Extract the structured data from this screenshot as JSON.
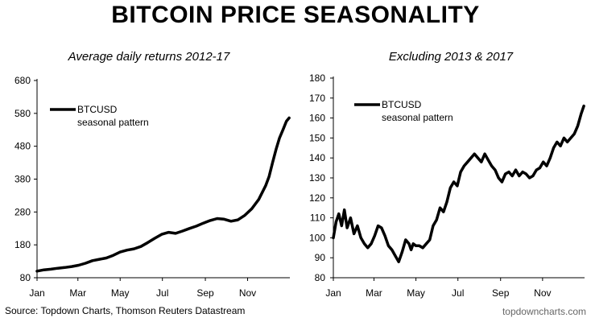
{
  "title": "BITCOIN PRICE SEASONALITY",
  "source": "Source: Topdown Charts, Thomson Reuters Datastream",
  "site": "topdowncharts.com",
  "chart_data": [
    {
      "type": "line",
      "subtitle": "Average daily returns 2012-17",
      "legend": [
        "BTCUSD",
        "seasonal pattern"
      ],
      "legend_position": "top-left",
      "grid": false,
      "ylim": [
        80,
        680
      ],
      "yticks": [
        80,
        180,
        280,
        380,
        480,
        580,
        680
      ],
      "xlim": [
        0,
        365
      ],
      "xticks": [
        {
          "label": "Jan",
          "day": 0
        },
        {
          "label": "Mar",
          "day": 59
        },
        {
          "label": "May",
          "day": 120
        },
        {
          "label": "Jul",
          "day": 181
        },
        {
          "label": "Sep",
          "day": 243
        },
        {
          "label": "Nov",
          "day": 304
        }
      ],
      "series": [
        {
          "name": "BTCUSD",
          "color": "#000000",
          "x": [
            0,
            10,
            20,
            30,
            40,
            50,
            60,
            70,
            80,
            90,
            100,
            110,
            120,
            130,
            140,
            150,
            160,
            170,
            180,
            190,
            200,
            210,
            220,
            230,
            240,
            250,
            260,
            270,
            280,
            290,
            300,
            310,
            320,
            330,
            335,
            340,
            345,
            350,
            355,
            360,
            364
          ],
          "y": [
            100,
            104,
            106,
            109,
            111,
            114,
            118,
            124,
            132,
            136,
            140,
            148,
            158,
            164,
            168,
            175,
            187,
            200,
            212,
            218,
            215,
            222,
            230,
            237,
            246,
            254,
            260,
            258,
            252,
            256,
            270,
            290,
            318,
            360,
            388,
            430,
            470,
            505,
            530,
            556,
            566
          ]
        }
      ]
    },
    {
      "type": "line",
      "subtitle": "Excluding 2013 & 2017",
      "legend": [
        "BTCUSD",
        "seasonal pattern"
      ],
      "legend_position": "top-left",
      "grid": false,
      "ylim": [
        80,
        180
      ],
      "yticks": [
        80,
        90,
        100,
        110,
        120,
        130,
        140,
        150,
        160,
        170,
        180
      ],
      "xlim": [
        0,
        365
      ],
      "xticks": [
        {
          "label": "Jan",
          "day": 0
        },
        {
          "label": "Mar",
          "day": 59
        },
        {
          "label": "May",
          "day": 120
        },
        {
          "label": "Jul",
          "day": 181
        },
        {
          "label": "Sep",
          "day": 243
        },
        {
          "label": "Nov",
          "day": 304
        }
      ],
      "series": [
        {
          "name": "BTCUSD",
          "color": "#000000",
          "x": [
            0,
            4,
            8,
            12,
            16,
            20,
            25,
            30,
            35,
            40,
            45,
            50,
            55,
            60,
            65,
            70,
            75,
            80,
            85,
            90,
            95,
            100,
            105,
            110,
            113,
            116,
            120,
            125,
            130,
            135,
            140,
            145,
            150,
            155,
            160,
            165,
            170,
            175,
            180,
            185,
            190,
            195,
            200,
            205,
            210,
            215,
            220,
            225,
            230,
            235,
            240,
            245,
            250,
            255,
            260,
            265,
            270,
            275,
            280,
            285,
            290,
            295,
            300,
            305,
            310,
            315,
            320,
            325,
            330,
            335,
            340,
            345,
            350,
            355,
            360,
            364
          ],
          "y": [
            100,
            108,
            112,
            106,
            114,
            105,
            110,
            102,
            106,
            100,
            97,
            95,
            97,
            101,
            106,
            105,
            101,
            96,
            94,
            91,
            88,
            93,
            99,
            97,
            94,
            97,
            96,
            96,
            95,
            97,
            99,
            106,
            109,
            115,
            113,
            118,
            125,
            128,
            126,
            133,
            136,
            138,
            140,
            142,
            140,
            138,
            142,
            139,
            136,
            134,
            130,
            128,
            132,
            133,
            131,
            134,
            131,
            133,
            132,
            130,
            131,
            134,
            135,
            138,
            136,
            140,
            145,
            148,
            146,
            150,
            148,
            150,
            152,
            156,
            162,
            166
          ]
        }
      ]
    }
  ]
}
